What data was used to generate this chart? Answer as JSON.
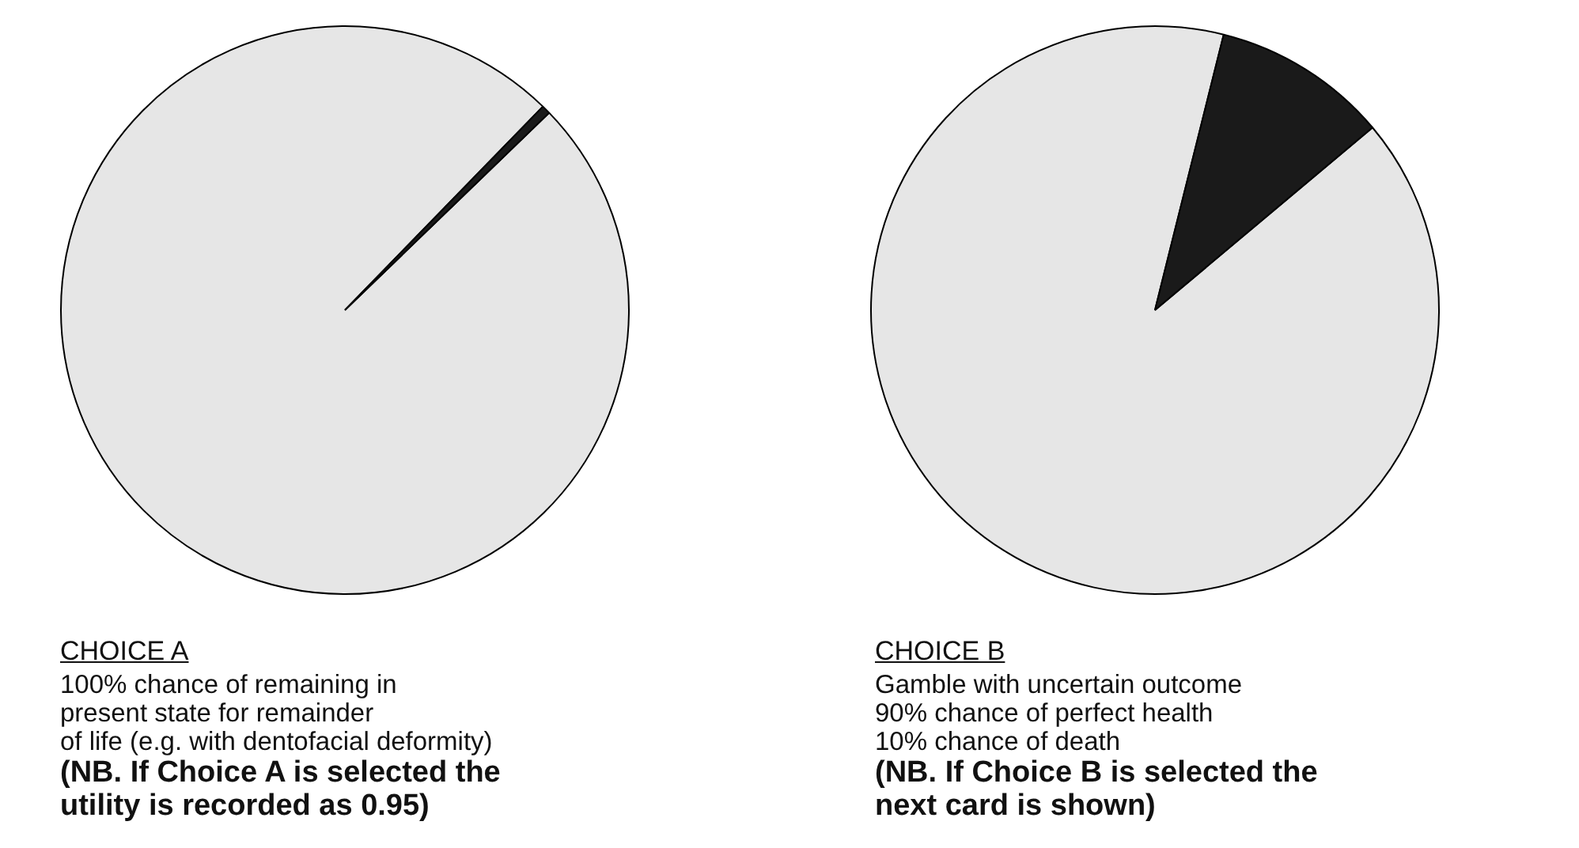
{
  "chart_data": [
    {
      "type": "pie",
      "title": "CHOICE A",
      "categories": [
        null,
        null
      ],
      "values": [
        99.5,
        0.5
      ],
      "colors": [
        "#e6e6e6",
        "#1a1a1a"
      ],
      "legend": false,
      "annotations": [
        "100% chance of remaining in",
        "present state for remainder",
        "of life (e.g. with dentofacial deformity)",
        "(NB. If Choice A is selected the",
        "utility is recorded as 0.95)"
      ]
    },
    {
      "type": "pie",
      "title": "CHOICE B",
      "categories": [
        null,
        null
      ],
      "values": [
        90,
        10
      ],
      "colors": [
        "#e6e6e6",
        "#1a1a1a"
      ],
      "legend": false,
      "annotations": [
        "Gamble with uncertain outcome",
        "90% chance of perfect health",
        "10% chance of death",
        "(NB. If Choice B is selected the",
        "next card is shown)"
      ]
    }
  ]
}
